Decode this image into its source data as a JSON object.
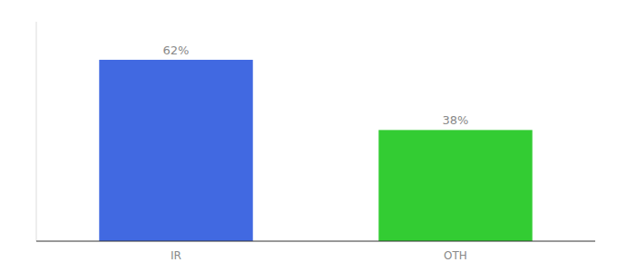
{
  "chart_data": {
    "type": "bar",
    "categories": [
      "IR",
      "OTH"
    ],
    "values": [
      62,
      38
    ],
    "value_labels": [
      "62%",
      "38%"
    ],
    "colors": [
      "#4169e1",
      "#33cc33"
    ],
    "ylim": [
      0,
      75
    ],
    "data_labels": true,
    "tick_labels": "x"
  }
}
